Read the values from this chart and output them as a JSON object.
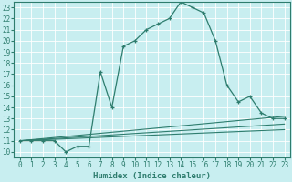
{
  "xlabel": "Humidex (Indice chaleur)",
  "background_color": "#c8eef0",
  "grid_color": "#ffffff",
  "line_color": "#2e7d6e",
  "xlim": [
    -0.5,
    23.5
  ],
  "ylim": [
    9.5,
    23.5
  ],
  "yticks": [
    10,
    11,
    12,
    13,
    14,
    15,
    16,
    17,
    18,
    19,
    20,
    21,
    22,
    23
  ],
  "xticks": [
    0,
    1,
    2,
    3,
    4,
    5,
    6,
    7,
    8,
    9,
    10,
    11,
    12,
    13,
    14,
    15,
    16,
    17,
    18,
    19,
    20,
    21,
    22,
    23
  ],
  "main_line": {
    "x": [
      0,
      1,
      2,
      3,
      4,
      5,
      6,
      7,
      8,
      9,
      10,
      11,
      12,
      13,
      14,
      15,
      16,
      17,
      18,
      19,
      20,
      21,
      22,
      23
    ],
    "y": [
      11,
      11,
      11,
      11,
      10,
      10.5,
      10.5,
      17.2,
      14,
      19.5,
      20,
      21,
      21.5,
      22,
      23.5,
      23,
      22.5,
      20,
      16,
      14.5,
      15,
      13.5,
      13,
      13
    ]
  },
  "trend_lines": [
    {
      "x": [
        0,
        23
      ],
      "y": [
        11,
        13.2
      ]
    },
    {
      "x": [
        0,
        23
      ],
      "y": [
        11,
        12.5
      ]
    },
    {
      "x": [
        0,
        23
      ],
      "y": [
        11,
        12.0
      ]
    }
  ]
}
